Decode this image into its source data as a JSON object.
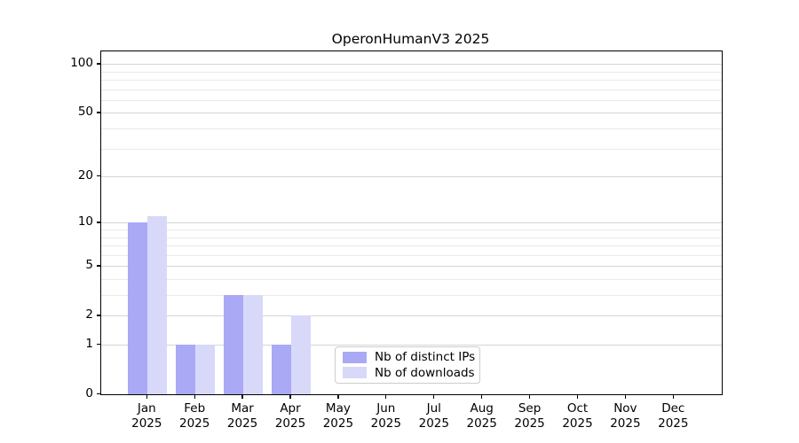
{
  "chart_data": {
    "type": "bar",
    "title": "OperonHumanV3 2025",
    "categories": [
      "Jan",
      "Feb",
      "Mar",
      "Apr",
      "May",
      "Jun",
      "Jul",
      "Aug",
      "Sep",
      "Oct",
      "Nov",
      "Dec"
    ],
    "x_tick_second_line": "2025",
    "series": [
      {
        "name": "Nb of distinct IPs",
        "color": "#a9a9f5",
        "values": [
          10,
          1,
          3,
          1,
          0,
          0,
          0,
          0,
          0,
          0,
          0,
          0
        ]
      },
      {
        "name": "Nb of downloads",
        "color": "#d8d8f9",
        "values": [
          11,
          1,
          3,
          2,
          0,
          0,
          0,
          0,
          0,
          0,
          0,
          0
        ]
      }
    ],
    "y_axis": {
      "scale": "log1p",
      "ticks": [
        0,
        1,
        2,
        5,
        10,
        20,
        50,
        100
      ],
      "minor_gridlines": [
        3,
        4,
        6,
        7,
        8,
        9,
        30,
        40,
        60,
        70,
        80,
        90
      ],
      "max": 119.4
    },
    "legend": {
      "position": "lower center",
      "entries": [
        "Nb of distinct IPs",
        "Nb of downloads"
      ]
    },
    "grid": true,
    "colors": {
      "major_grid": "#d4d4d4",
      "minor_grid": "#eaeaea",
      "spine": "#000000",
      "background": "#ffffff"
    }
  }
}
